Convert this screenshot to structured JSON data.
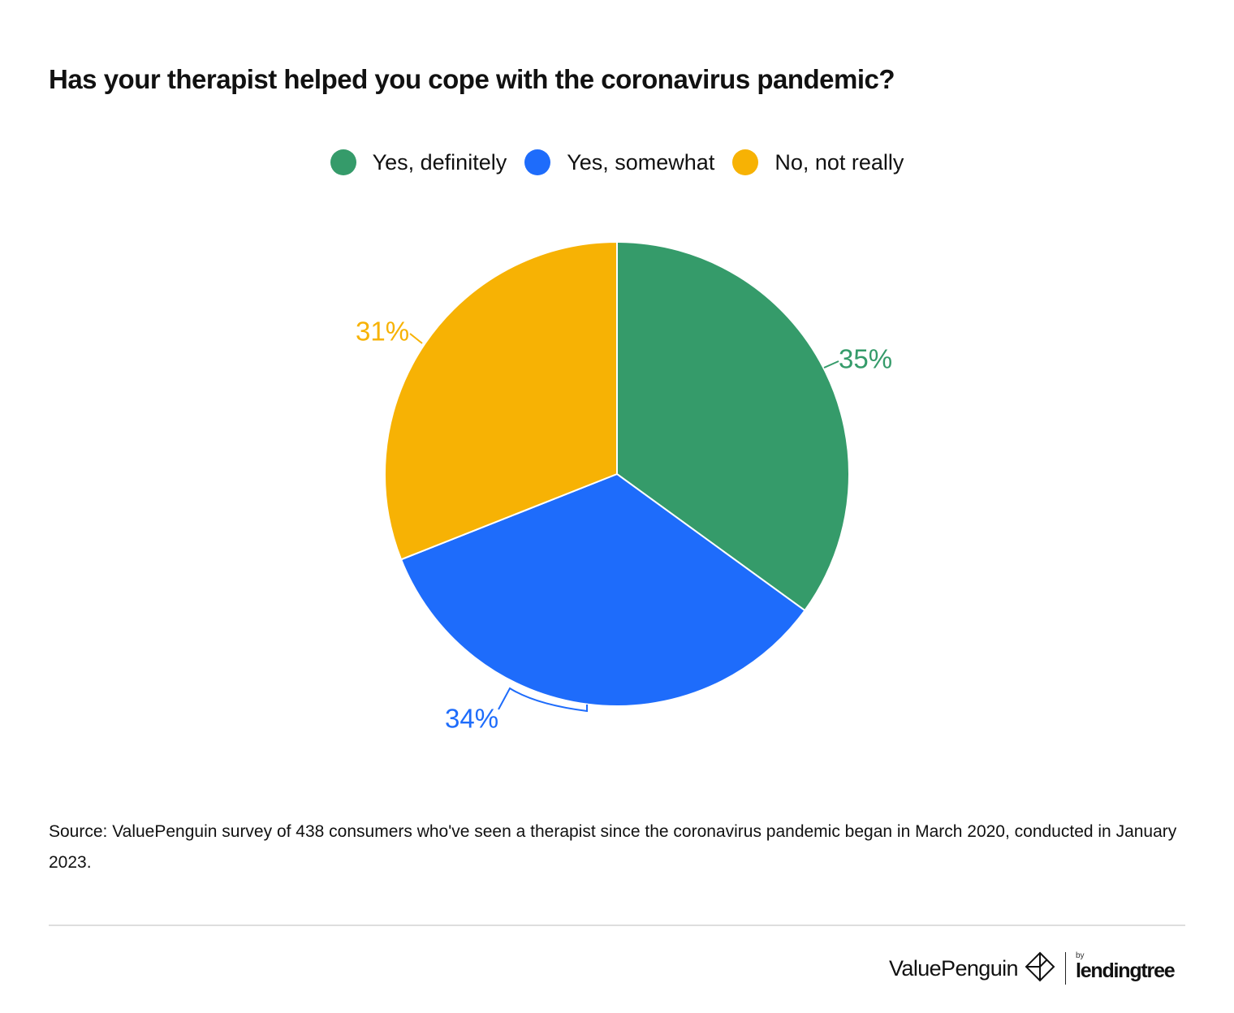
{
  "title": "Has your therapist helped you cope with the coronavirus pandemic?",
  "legend": [
    {
      "label": "Yes, definitely",
      "color": "#359b6a"
    },
    {
      "label": "Yes, somewhat",
      "color": "#1e6cfb"
    },
    {
      "label": "No, not really",
      "color": "#f7b204"
    }
  ],
  "chart_data": {
    "type": "pie",
    "title": "Has your therapist helped you cope with the coronavirus pandemic?",
    "slices": [
      {
        "label": "Yes, definitely",
        "value": 35,
        "display": "35%",
        "color": "#359b6a"
      },
      {
        "label": "Yes, somewhat",
        "value": 34,
        "display": "34%",
        "color": "#1e6cfb"
      },
      {
        "label": "No, not really",
        "value": 31,
        "display": "31%",
        "color": "#f7b204"
      }
    ],
    "start_angle": "12 o'clock",
    "direction": "clockwise",
    "legend_position": "top-center"
  },
  "source": "Source: ValuePenguin survey of 438 consumers who've seen a therapist since the coronavirus pandemic began in March 2020, conducted in January 2023.",
  "brand": {
    "name": "ValuePenguin",
    "by": "by",
    "partner": "lendingtree",
    "icon": "valuepenguin-diamond-icon"
  }
}
